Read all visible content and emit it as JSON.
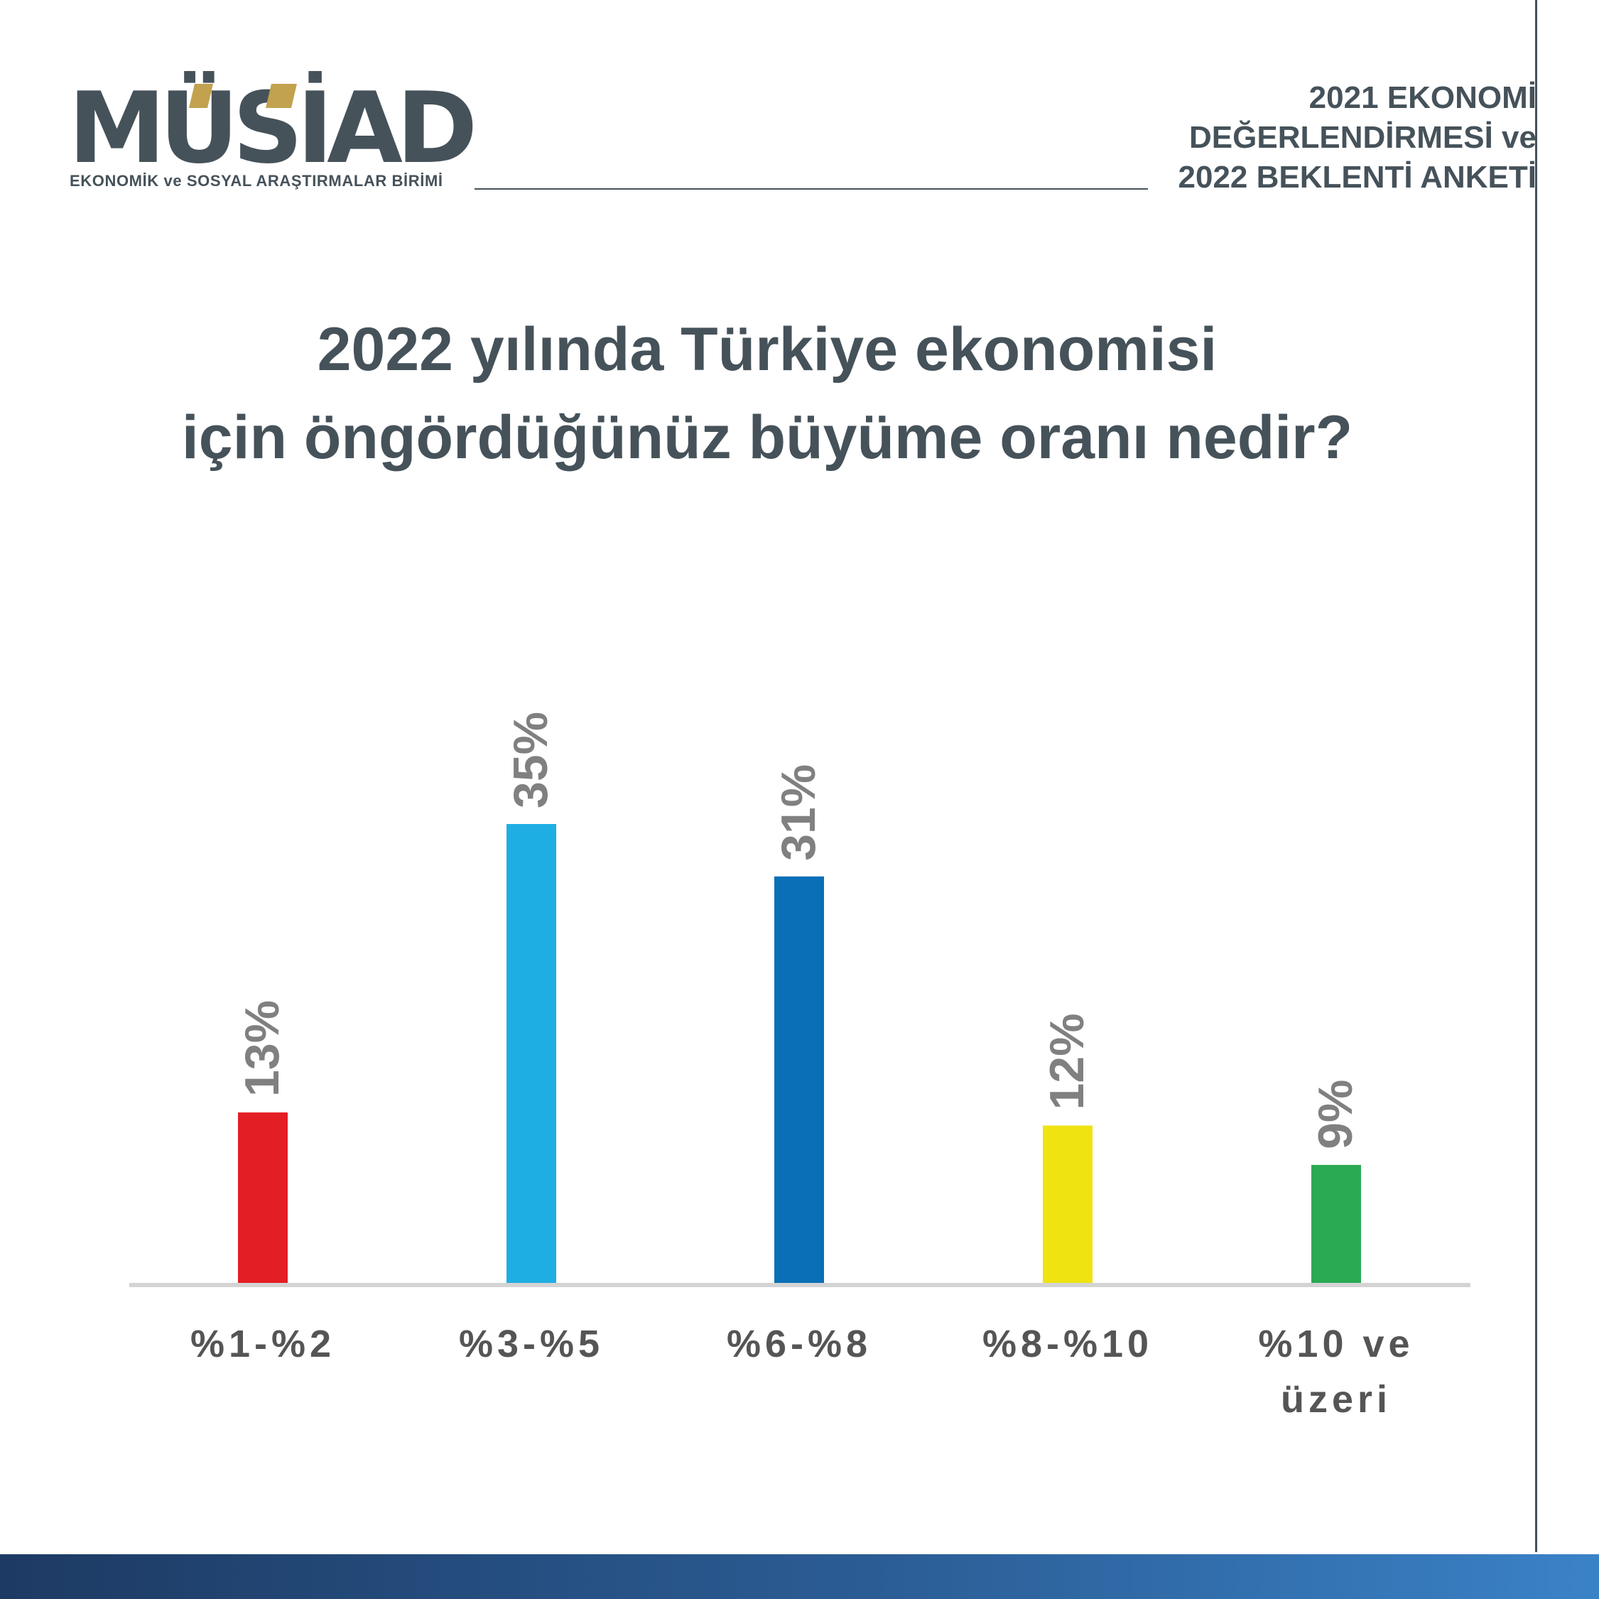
{
  "logo": {
    "wordmark": "MÜSİAD",
    "subtitle": "EKONOMİK ve SOSYAL ARAŞTIRMALAR BİRİMİ",
    "text_color": "#46525a",
    "accent_color": "#c2a14f"
  },
  "header": {
    "title_lines": [
      "2021 EKONOMİ",
      "DEĞERLENDİRMESİ ve",
      "2022 BEKLENTİ ANKETİ"
    ]
  },
  "question": {
    "lines": [
      "2022 yılında Türkiye ekonomisi",
      "için öngördüğünüz büyüme oranı nedir?"
    ]
  },
  "chart_data": {
    "type": "bar",
    "title": "2022 yılında Türkiye ekonomisi için öngördüğünüz büyüme oranı nedir?",
    "categories": [
      "%1-%2",
      "%3-%5",
      "%6-%8",
      "%8-%10",
      "%10 ve üzeri"
    ],
    "category_lines": [
      [
        "%1-%2"
      ],
      [
        "%3-%5"
      ],
      [
        "%6-%8"
      ],
      [
        "%8-%10"
      ],
      [
        "%10 ve",
        "üzeri"
      ]
    ],
    "values": [
      13,
      35,
      31,
      12,
      9
    ],
    "value_labels": [
      "13%",
      "35%",
      "31%",
      "12%",
      "9%"
    ],
    "colors": [
      "#e31e24",
      "#1faee3",
      "#0a6fb7",
      "#f0e312",
      "#2aaa52"
    ],
    "label_color": "#808080",
    "axis_color": "#d4d4d4",
    "ylim": [
      0,
      35
    ],
    "grid": false,
    "legend": "none",
    "value_label_orientation": "vertical"
  },
  "footer": {
    "band_colors": [
      "#1d3a63",
      "#3a82c7"
    ]
  }
}
